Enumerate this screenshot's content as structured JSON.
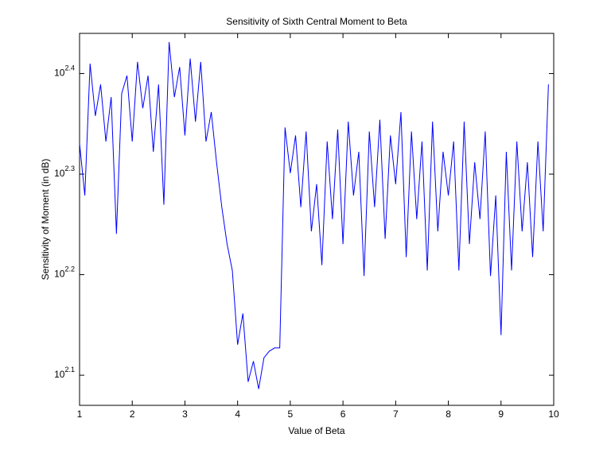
{
  "chart_data": {
    "type": "line",
    "title": "Sensitivity of Sixth Central Moment to Beta",
    "x_label": "Value of Beta",
    "y_label": "Sensitivity of Moment (in dB)",
    "log_y": true,
    "color": "#0000ff",
    "xlim": [
      1,
      10
    ],
    "xticks": [
      1,
      2,
      3,
      4,
      5,
      6,
      7,
      8,
      9,
      10
    ],
    "ylim": [
      117.5,
      275.4
    ],
    "yticks": [
      {
        "value": 125.89,
        "label": "10^2.1"
      },
      {
        "value": 158.49,
        "label": "10^2.2"
      },
      {
        "value": 199.53,
        "label": "10^2.3"
      },
      {
        "value": 251.19,
        "label": "10^2.4"
      }
    ],
    "x": [
      1.0,
      1.1,
      1.2,
      1.3,
      1.4,
      1.5,
      1.6,
      1.7,
      1.8,
      1.9,
      2.0,
      2.1,
      2.2,
      2.3,
      2.4,
      2.5,
      2.6,
      2.7,
      2.8,
      2.9,
      3.0,
      3.1,
      3.2,
      3.3,
      3.4,
      3.5,
      3.6,
      3.7,
      3.8,
      3.9,
      4.0,
      4.1,
      4.2,
      4.3,
      4.4,
      4.5,
      4.6,
      4.7,
      4.8,
      4.9,
      5.0,
      5.1,
      5.2,
      5.3,
      5.4,
      5.5,
      5.6,
      5.7,
      5.8,
      5.9,
      6.0,
      6.1,
      6.2,
      6.3,
      6.4,
      6.5,
      6.6,
      6.7,
      6.8,
      6.9,
      7.0,
      7.1,
      7.2,
      7.3,
      7.4,
      7.5,
      7.6,
      7.7,
      7.8,
      7.9,
      8.0,
      8.1,
      8.2,
      8.3,
      8.4,
      8.5,
      8.6,
      8.7,
      8.8,
      8.9,
      9.0,
      9.1,
      9.2,
      9.3,
      9.4,
      9.5,
      9.6,
      9.7,
      9.8,
      9.9
    ],
    "values": [
      214,
      190,
      257,
      228,
      245,
      215,
      238,
      174,
      240,
      250,
      215,
      258,
      232,
      250,
      210,
      245,
      186,
      270,
      238,
      255,
      218,
      260,
      225,
      258,
      215,
      230,
      205,
      185,
      170,
      160,
      135,
      145,
      124,
      130,
      122,
      131,
      133,
      134,
      134,
      222,
      200,
      218,
      185,
      220,
      175,
      195,
      162,
      215,
      180,
      221,
      170,
      225,
      190,
      210,
      158,
      220,
      185,
      226,
      172,
      218,
      195,
      230,
      165,
      220,
      180,
      215,
      160,
      225,
      175,
      210,
      190,
      215,
      160,
      225,
      170,
      205,
      180,
      220,
      158,
      190,
      138,
      210,
      160,
      215,
      175,
      205,
      165,
      215,
      175,
      245
    ]
  }
}
